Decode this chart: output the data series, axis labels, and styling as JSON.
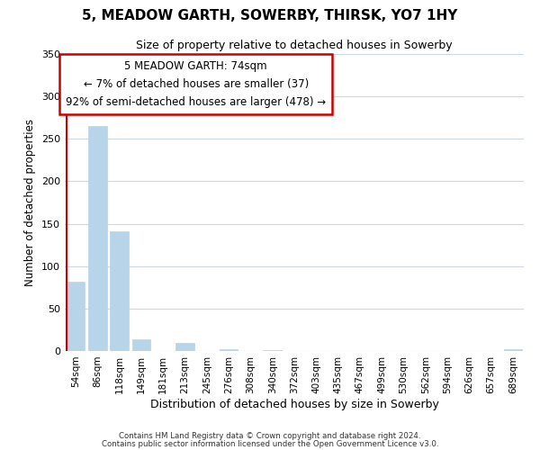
{
  "title": "5, MEADOW GARTH, SOWERBY, THIRSK, YO7 1HY",
  "subtitle": "Size of property relative to detached houses in Sowerby",
  "xlabel": "Distribution of detached houses by size in Sowerby",
  "ylabel": "Number of detached properties",
  "footer_line1": "Contains HM Land Registry data © Crown copyright and database right 2024.",
  "footer_line2": "Contains public sector information licensed under the Open Government Licence v3.0.",
  "categories": [
    "54sqm",
    "86sqm",
    "118sqm",
    "149sqm",
    "181sqm",
    "213sqm",
    "245sqm",
    "276sqm",
    "308sqm",
    "340sqm",
    "372sqm",
    "403sqm",
    "435sqm",
    "467sqm",
    "499sqm",
    "530sqm",
    "562sqm",
    "594sqm",
    "626sqm",
    "657sqm",
    "689sqm"
  ],
  "values": [
    82,
    265,
    141,
    14,
    0,
    10,
    0,
    2,
    0,
    1,
    0,
    0,
    0,
    0,
    0,
    0,
    0,
    0,
    0,
    0,
    2
  ],
  "bar_color_normal": "#b8d4e8",
  "marker_line_color": "#cc0000",
  "marker_bin_index": 0,
  "annotation_text_line1": "5 MEADOW GARTH: 74sqm",
  "annotation_text_line2": "← 7% of detached houses are smaller (37)",
  "annotation_text_line3": "92% of semi-detached houses are larger (478) →",
  "annotation_box_color": "#ffffff",
  "annotation_box_edge_color": "#cc0000",
  "ylim": [
    0,
    350
  ],
  "yticks": [
    0,
    50,
    100,
    150,
    200,
    250,
    300,
    350
  ],
  "background_color": "#ffffff",
  "grid_color": "#ccd8e8"
}
